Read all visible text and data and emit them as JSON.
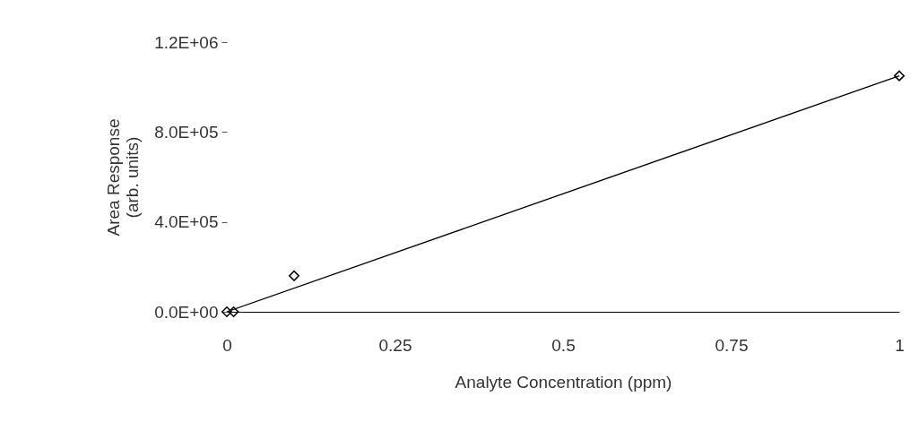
{
  "chart_data": {
    "type": "scatter",
    "xlabel": "Analyte Concentration (ppm)",
    "ylabel": "Area Response\n(arb. units)",
    "series": [
      {
        "color": "#000000",
        "x": [
          0,
          0.01,
          0.1,
          1
        ],
        "values": [
          0,
          0,
          160000,
          1050000
        ],
        "marker": "diamond"
      },
      {
        "type": "line",
        "color": "#000000",
        "x": [
          0,
          1
        ],
        "values": [
          0,
          1050000
        ],
        "line_style": "solid"
      }
    ],
    "xlim": [
      0,
      1
    ],
    "xticks": [
      0,
      0.25,
      0.5,
      0.75,
      1
    ],
    "ylim": [
      0,
      1200000
    ],
    "yticks": [
      {
        "value": 0,
        "label": "0.0E+00"
      },
      {
        "value": 400000,
        "label": "4.0E+05"
      },
      {
        "value": 800000,
        "label": "8.0E+05"
      },
      {
        "value": 1200000,
        "label": "1.2E+06"
      }
    ],
    "grid": false
  }
}
